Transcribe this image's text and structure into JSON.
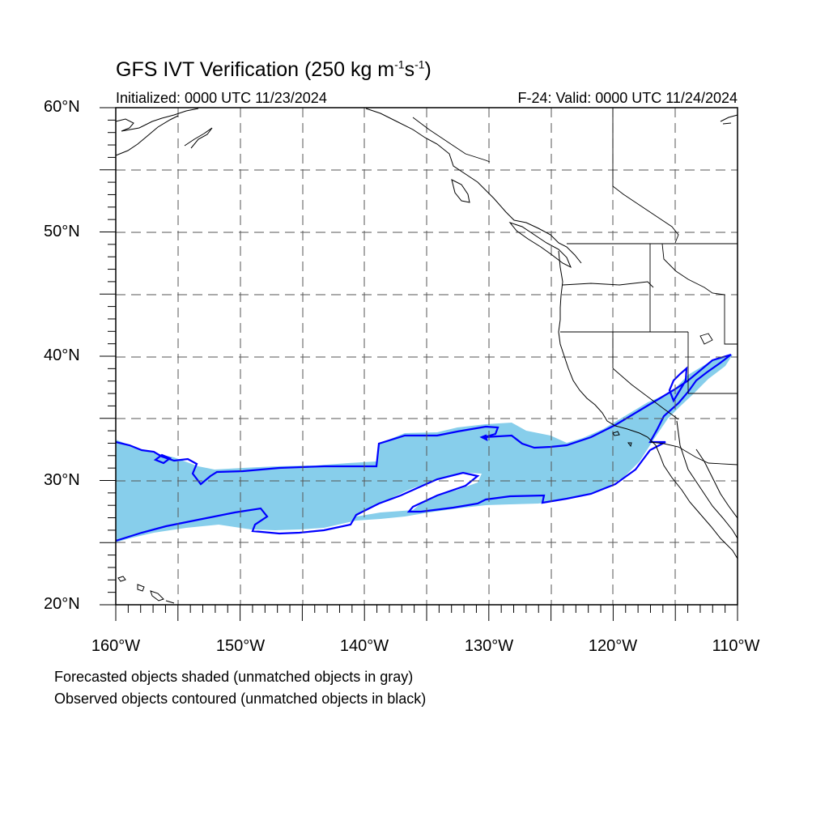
{
  "figure": {
    "title_main": "GFS IVT Verification (250 kg m",
    "title_exp1": "-1",
    "title_mid": "s",
    "title_exp2": "-1",
    "title_end": ")",
    "initialized": "Initialized: 0000 UTC 11/23/2024",
    "valid": "F-24: Valid: 0000 UTC 11/24/2024",
    "footnote_1": "Forecasted objects shaded (unmatched objects in gray)",
    "footnote_2": "Observed objects contoured (unmatched objects in black)"
  },
  "axes": {
    "lat_ticks": [
      "60°N",
      "50°N",
      "40°N",
      "30°N",
      "20°N"
    ],
    "lon_ticks": [
      "160°W",
      "150°W",
      "140°W",
      "130°W",
      "120°W",
      "110°W"
    ]
  },
  "map": {
    "lon_range": [
      -160,
      -110
    ],
    "lat_range": [
      20,
      60
    ],
    "grid_interval_deg": 5,
    "forecast_fill_color": "#87ceeb",
    "observed_contour_color": "#0000ff",
    "coast_color": "#000000"
  }
}
